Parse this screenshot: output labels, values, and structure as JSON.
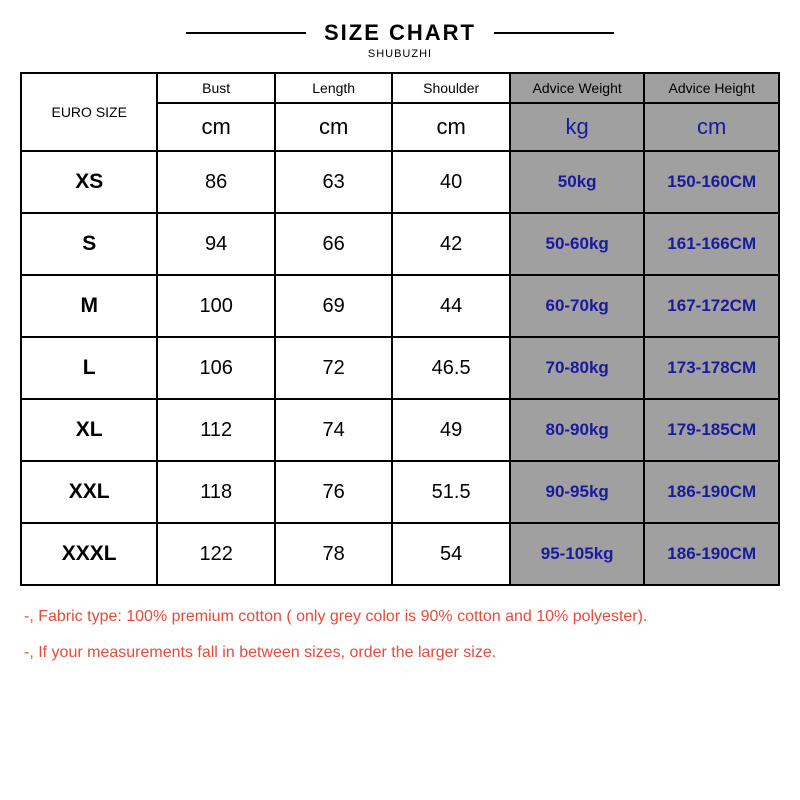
{
  "title": "SIZE CHART",
  "subtitle": "SHUBUZHI",
  "table": {
    "size_label": "EURO SIZE",
    "headers": [
      "Bust",
      "Length",
      "Shoulder",
      "Advice Weight",
      "Advice Height"
    ],
    "units": [
      "cm",
      "cm",
      "cm",
      "kg",
      "cm"
    ],
    "rows": [
      {
        "size": "XS",
        "bust": "86",
        "length": "63",
        "shoulder": "40",
        "weight": "50kg",
        "height": "150-160CM"
      },
      {
        "size": "S",
        "bust": "94",
        "length": "66",
        "shoulder": "42",
        "weight": "50-60kg",
        "height": "161-166CM"
      },
      {
        "size": "M",
        "bust": "100",
        "length": "69",
        "shoulder": "44",
        "weight": "60-70kg",
        "height": "167-172CM"
      },
      {
        "size": "L",
        "bust": "106",
        "length": "72",
        "shoulder": "46.5",
        "weight": "70-80kg",
        "height": "173-178CM"
      },
      {
        "size": "XL",
        "bust": "112",
        "length": "74",
        "shoulder": "49",
        "weight": "80-90kg",
        "height": "179-185CM"
      },
      {
        "size": "XXL",
        "bust": "118",
        "length": "76",
        "shoulder": "51.5",
        "weight": "90-95kg",
        "height": "186-190CM"
      },
      {
        "size": "XXXL",
        "bust": "122",
        "length": "78",
        "shoulder": "54",
        "weight": "95-105kg",
        "height": "186-190CM"
      }
    ]
  },
  "notes": [
    "-, Fabric type: 100% premium cotton ( only grey color is 90% cotton and 10% polyester).",
    "-, If your measurements fall in between sizes, order the larger size."
  ],
  "colors": {
    "border": "#000000",
    "advice_bg": "#a0a0a0",
    "advice_text": "#1a1a9e",
    "notes_text": "#e84a3a",
    "background": "#ffffff"
  },
  "typography": {
    "title_fontsize": 22,
    "header_fontsize": 14,
    "unit_fontsize": 22,
    "size_cell_fontsize": 21,
    "meas_cell_fontsize": 20,
    "advice_cell_fontsize": 17,
    "notes_fontsize": 16
  }
}
